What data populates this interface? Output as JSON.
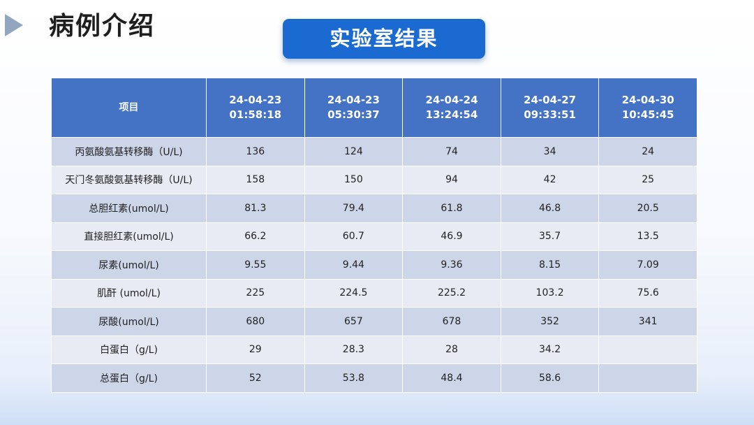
{
  "slide": {
    "title": "病例介绍",
    "section_button": "实验室结果"
  },
  "colors": {
    "header_bg": "#4472c4",
    "button_bg": "#1a6ad1",
    "row_odd": "#cdd5e8",
    "row_even": "#e8ebf4",
    "arrow": "#93a6bf"
  },
  "table": {
    "item_header": "项目",
    "columns": [
      {
        "date": "24-04-23",
        "time": "01:58:18"
      },
      {
        "date": "24-04-23",
        "time": "05:30:37"
      },
      {
        "date": "24-04-24",
        "time": "13:24:54"
      },
      {
        "date": "24-04-27",
        "time": "09:33:51"
      },
      {
        "date": "24-04-30",
        "time": "10:45:45"
      }
    ],
    "rows": [
      {
        "label": "丙氨酸氨基转移酶（U/L)",
        "values": [
          "136",
          "124",
          "74",
          "34",
          "24"
        ]
      },
      {
        "label": "天门冬氨酸氨基转移酶（U/L)",
        "values": [
          "158",
          "150",
          "94",
          "42",
          "25"
        ]
      },
      {
        "label": "总胆红素(umol/L)",
        "values": [
          "81.3",
          "79.4",
          "61.8",
          "46.8",
          "20.5"
        ]
      },
      {
        "label": "直接胆红素(umol/L)",
        "values": [
          "66.2",
          "60.7",
          "46.9",
          "35.7",
          "13.5"
        ]
      },
      {
        "label": "尿素(umol/L)",
        "values": [
          "9.55",
          "9.44",
          "9.36",
          "8.15",
          "7.09"
        ]
      },
      {
        "label": "肌酐 (umol/L)",
        "values": [
          "225",
          "224.5",
          "225.2",
          "103.2",
          "75.6"
        ]
      },
      {
        "label": "尿酸(umol/L)",
        "values": [
          "680",
          "657",
          "678",
          "352",
          "341"
        ]
      },
      {
        "label": "白蛋白（g/L)",
        "values": [
          "29",
          "28.3",
          "28",
          "34.2",
          ""
        ]
      },
      {
        "label": "总蛋白（g/L)",
        "values": [
          "52",
          "53.8",
          "48.4",
          "58.6",
          ""
        ]
      }
    ]
  }
}
